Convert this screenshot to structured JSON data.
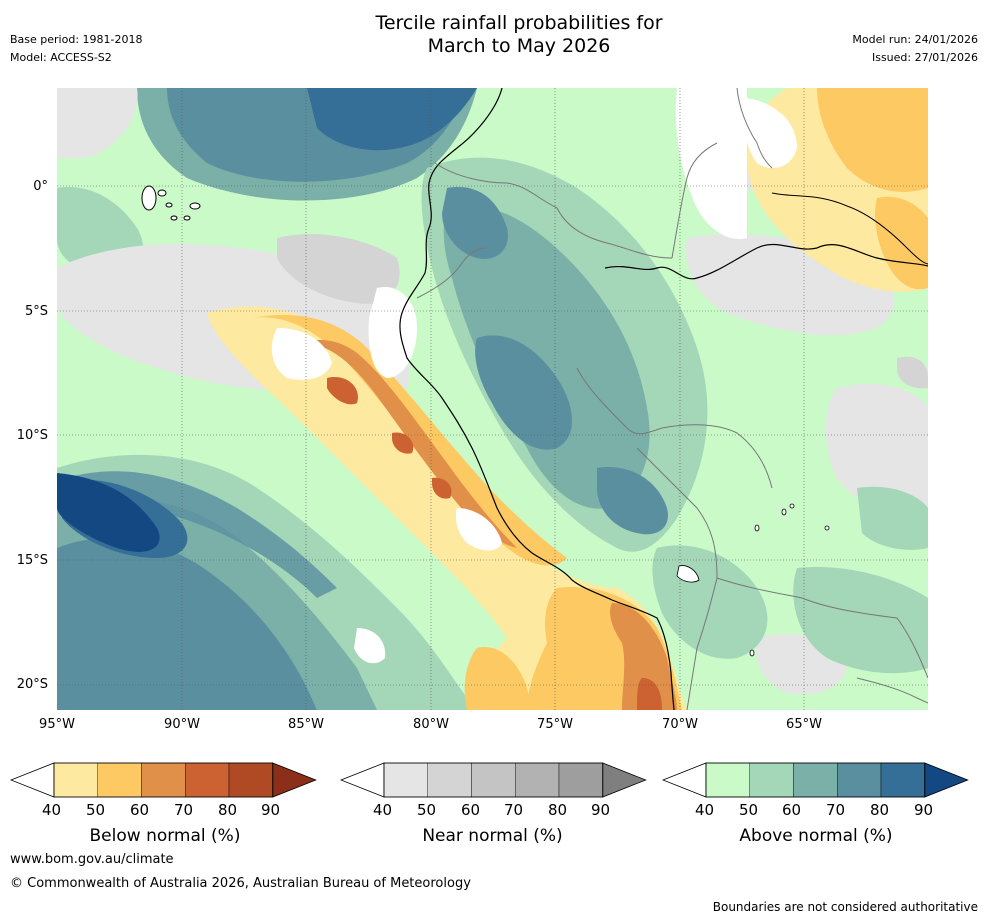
{
  "header": {
    "base_period": "Base period: 1981-2018",
    "model": "Model: ACCESS-S2",
    "title_line1": "Tercile rainfall probabilities for",
    "title_line2": "March to May 2026",
    "model_run": "Model run: 24/01/2026",
    "issued": "Issued: 27/01/2026"
  },
  "map": {
    "lat_labels": [
      "0°",
      "5°S",
      "10°S",
      "15°S",
      "20°S"
    ],
    "lon_labels": [
      "95°W",
      "90°W",
      "85°W",
      "80°W",
      "75°W",
      "70°W",
      "65°W"
    ]
  },
  "colorbars": [
    {
      "label": "Below normal (%)",
      "ticks": [
        "40",
        "50",
        "60",
        "70",
        "80",
        "90"
      ],
      "colors": [
        "#ffffff",
        "#fdeaa0",
        "#fcc963",
        "#e09048",
        "#cc6232",
        "#b04a25",
        "#8c2f1a"
      ]
    },
    {
      "label": "Near normal (%)",
      "ticks": [
        "40",
        "50",
        "60",
        "70",
        "80",
        "90"
      ],
      "colors": [
        "#ffffff",
        "#e5e5e5",
        "#d4d4d4",
        "#c4c4c4",
        "#b2b2b2",
        "#9e9e9e",
        "#7f7f7f"
      ]
    },
    {
      "label": "Above normal (%)",
      "ticks": [
        "40",
        "50",
        "60",
        "70",
        "80",
        "90"
      ],
      "colors": [
        "#ffffff",
        "#c9fac8",
        "#a4d6b8",
        "#7ab0a8",
        "#5a8fa0",
        "#356e96",
        "#144883"
      ]
    }
  ],
  "footer": {
    "website": "www.bom.gov.au/climate",
    "copyright": "© Commonwealth of Australia 2026, Australian Bureau of Meteorology",
    "disclaimer": "Boundaries are not considered authoritative"
  }
}
